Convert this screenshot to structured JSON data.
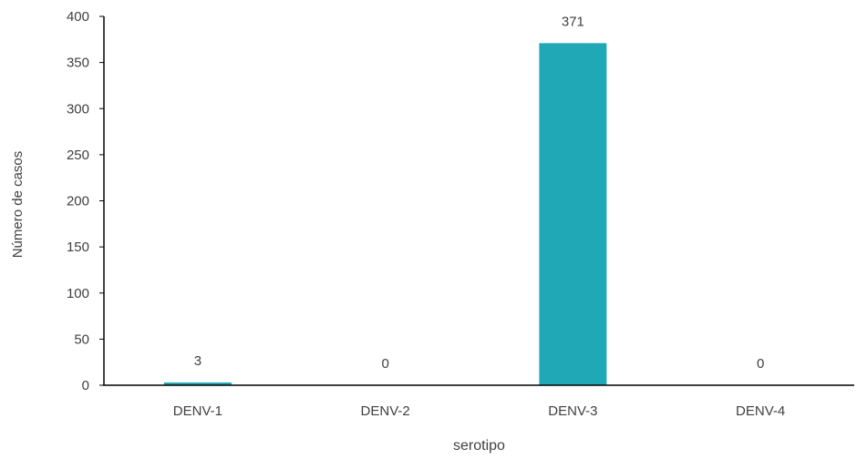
{
  "chart_data": {
    "type": "bar",
    "title": "",
    "xlabel": "serotipo",
    "ylabel": "Número de casos",
    "categories": [
      "DENV-1",
      "DENV-2",
      "DENV-3",
      "DENV-4"
    ],
    "values": [
      3,
      0,
      371,
      0
    ],
    "data_labels": [
      "3",
      "0",
      "371",
      "0"
    ],
    "ylim": [
      0,
      400
    ],
    "yticks": [
      0,
      50,
      100,
      150,
      200,
      250,
      300,
      350,
      400
    ],
    "grid": false,
    "legend": "none",
    "bar_color": "#20a8b6",
    "axis_color": "#000000",
    "text_color": "#404040"
  }
}
